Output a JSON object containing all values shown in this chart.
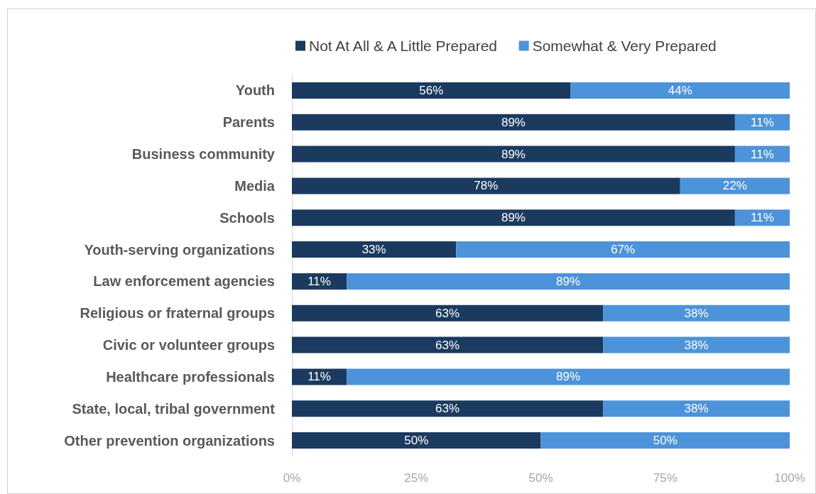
{
  "chart_data": {
    "type": "bar",
    "orientation": "horizontal",
    "stacked": true,
    "categories": [
      "Youth",
      "Parents",
      "Business community",
      "Media",
      "Schools",
      "Youth-serving organizations",
      "Law enforcement agencies",
      "Religious or fraternal groups",
      "Civic or volunteer groups",
      "Healthcare professionals",
      "State, local, tribal government",
      "Other prevention organizations"
    ],
    "series": [
      {
        "name": "Not At All & A Little Prepared",
        "color": "#1b3a5f",
        "values": [
          56,
          89,
          89,
          78,
          89,
          33,
          11,
          62.5,
          62.5,
          11,
          62.5,
          50
        ],
        "value_labels": [
          "56%",
          "89%",
          "89%",
          "78%",
          "89%",
          "33%",
          "11%",
          "63%",
          "63%",
          "11%",
          "63%",
          "50%"
        ]
      },
      {
        "name": "Somewhat & Very Prepared",
        "color": "#4d93d9",
        "values": [
          44,
          11,
          11,
          22,
          11,
          67,
          89,
          37.5,
          37.5,
          89,
          37.5,
          50
        ],
        "value_labels": [
          "44%",
          "11%",
          "11%",
          "22%",
          "11%",
          "67%",
          "89%",
          "38%",
          "38%",
          "89%",
          "38%",
          "50%"
        ]
      }
    ],
    "xlim": [
      0,
      100
    ],
    "xticks": [
      {
        "value": 0,
        "label": "0%"
      },
      {
        "value": 25,
        "label": "25%"
      },
      {
        "value": 50,
        "label": "50%"
      },
      {
        "value": 75,
        "label": "75%"
      },
      {
        "value": 100,
        "label": "100%"
      }
    ],
    "grid": false,
    "legend": "top"
  }
}
